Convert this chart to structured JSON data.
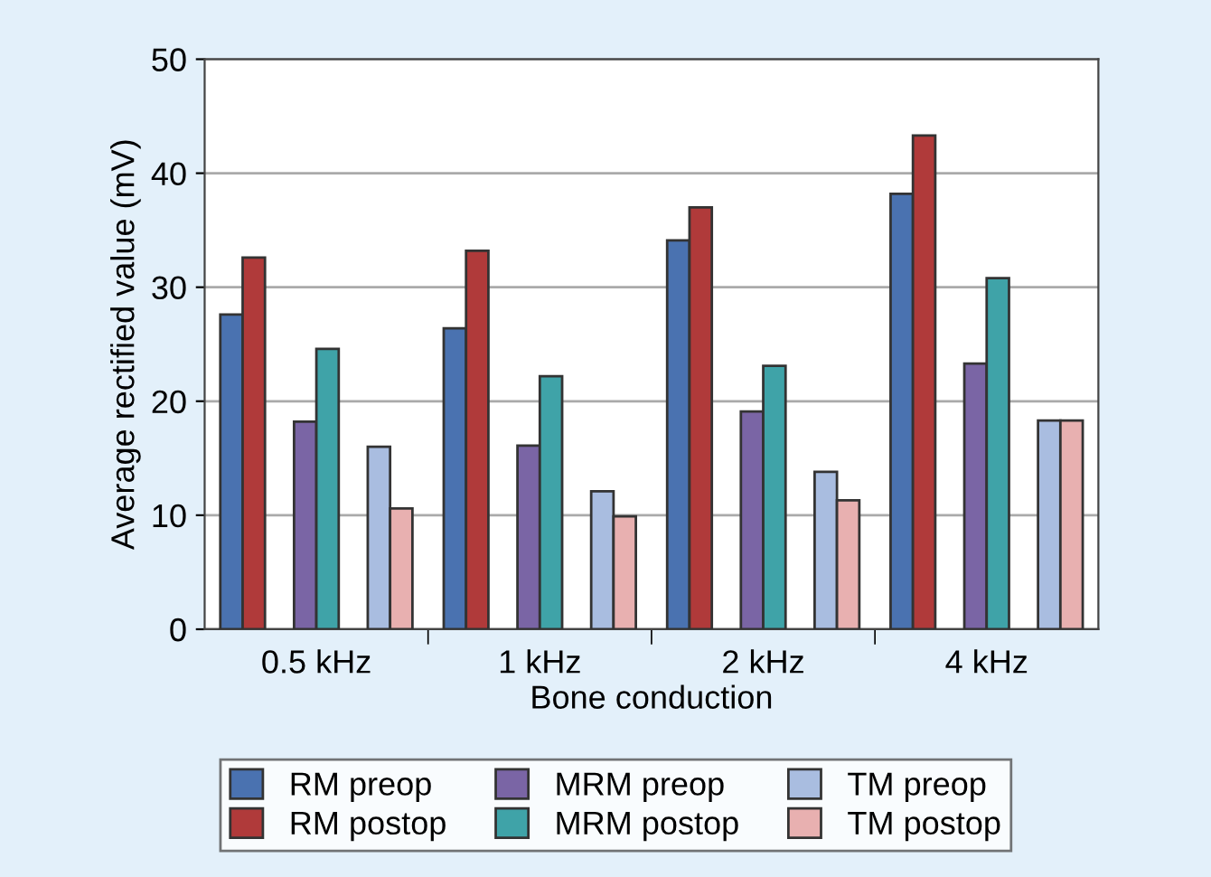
{
  "chart_data": {
    "type": "bar",
    "xlabel": "Bone conduction",
    "ylabel": "Average rectified value (mV)",
    "categories": [
      "0.5 kHz",
      "1 kHz",
      "2 kHz",
      "4 kHz"
    ],
    "series": [
      {
        "name": "RM preop",
        "color": "#4a72b0",
        "values": [
          27.6,
          26.4,
          34.1,
          38.2
        ]
      },
      {
        "name": "RM postop",
        "color": "#b03a3a",
        "values": [
          32.6,
          33.2,
          37.0,
          43.3
        ]
      },
      {
        "name": "MRM preop",
        "color": "#7a65a5",
        "values": [
          18.2,
          16.1,
          19.1,
          23.3
        ]
      },
      {
        "name": "MRM postop",
        "color": "#3fa3a8",
        "values": [
          24.6,
          22.2,
          23.1,
          30.8
        ]
      },
      {
        "name": "TM preop",
        "color": "#a9bde0",
        "values": [
          16.0,
          12.1,
          13.8,
          18.3
        ]
      },
      {
        "name": "TM postop",
        "color": "#e8b0b0",
        "values": [
          10.6,
          9.9,
          11.3,
          18.3
        ]
      }
    ],
    "ylim": [
      0,
      50
    ],
    "yticks": [
      0,
      10,
      20,
      30,
      40,
      50
    ],
    "grid": "y",
    "legend": "bottom"
  }
}
